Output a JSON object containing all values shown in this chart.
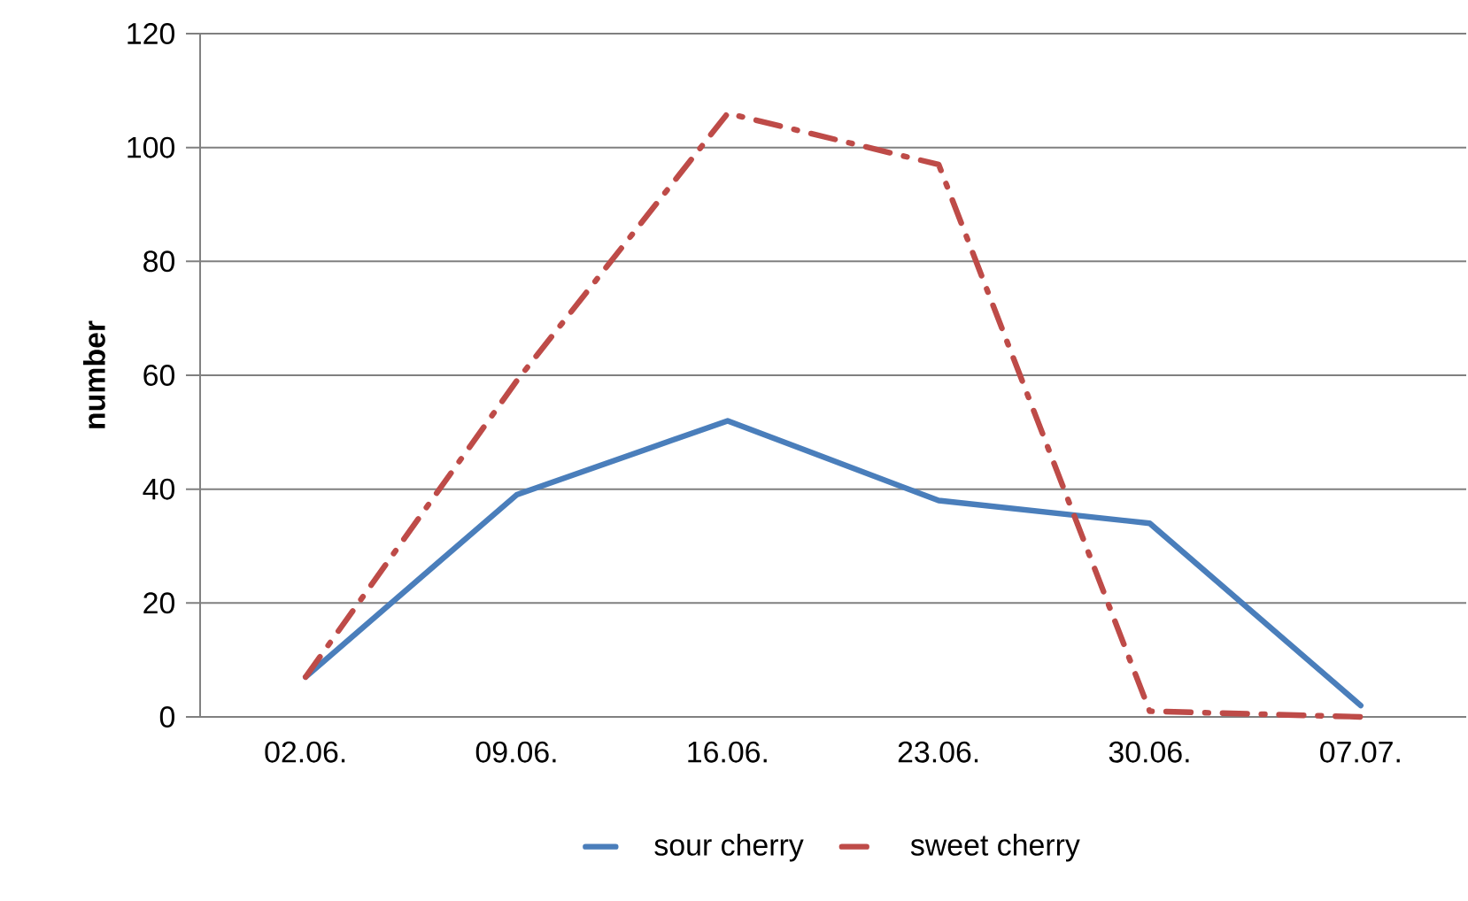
{
  "chart_data": {
    "type": "line",
    "ylabel": "number",
    "categories": [
      "02.06.",
      "09.06.",
      "16.06.",
      "23.06.",
      "30.06.",
      "07.07."
    ],
    "series": [
      {
        "name": "sour cherry",
        "color": "#4a7ebb",
        "line_style": "solid",
        "values": [
          7,
          39,
          52,
          38,
          34,
          2
        ]
      },
      {
        "name": "sweet cherry",
        "color": "#be4b48",
        "line_style": "dashed",
        "values": [
          7,
          59,
          106,
          97,
          1,
          0
        ]
      }
    ],
    "ylim": [
      0,
      120
    ],
    "yticks": [
      0,
      20,
      40,
      60,
      80,
      100,
      120
    ],
    "grid": "y",
    "legend": "bottom",
    "marker": "none"
  }
}
